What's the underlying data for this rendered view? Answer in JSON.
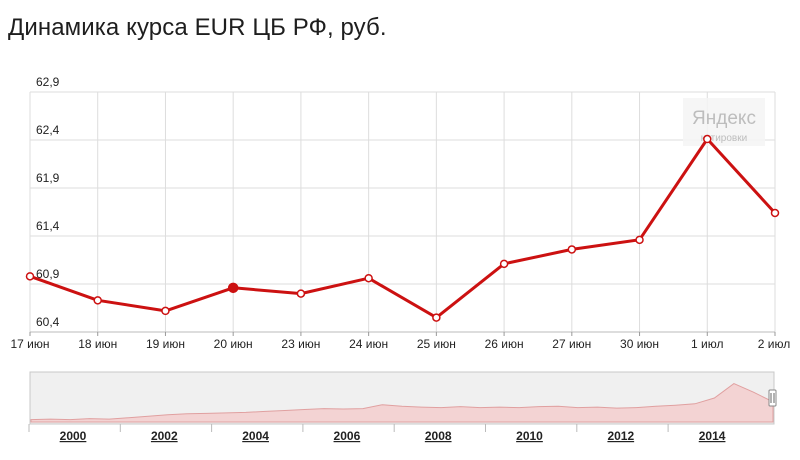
{
  "title": "Динамика курса EUR ЦБ РФ, руб.",
  "watermark": {
    "brand": "Яндекс",
    "sub": "котировки"
  },
  "colors": {
    "line": "#cc1111",
    "grid": "#dddddd",
    "nav_fill": "#f3d3d3",
    "nav_line": "#e0a0a0"
  },
  "chart_data": {
    "type": "line",
    "title": "Динамика курса EUR ЦБ РФ, руб.",
    "categories": [
      "17 июн",
      "18 июн",
      "19 июн",
      "20 июн",
      "23 июн",
      "24 июн",
      "25 июн",
      "26 июн",
      "27 июн",
      "30 июн",
      "1 июл",
      "2 июл"
    ],
    "values": [
      60.98,
      60.73,
      60.62,
      60.86,
      60.8,
      60.96,
      60.55,
      61.11,
      61.26,
      61.36,
      62.41,
      61.64
    ],
    "highlighted_index": 3,
    "yticks": [
      "62,9",
      "62,4",
      "61,9",
      "61,4",
      "60,9",
      "60,4"
    ],
    "ylim": [
      60.4,
      62.9
    ],
    "grid": true,
    "navigator": {
      "years": [
        "2000",
        "2002",
        "2004",
        "2006",
        "2008",
        "2010",
        "2012",
        "2014"
      ]
    }
  }
}
